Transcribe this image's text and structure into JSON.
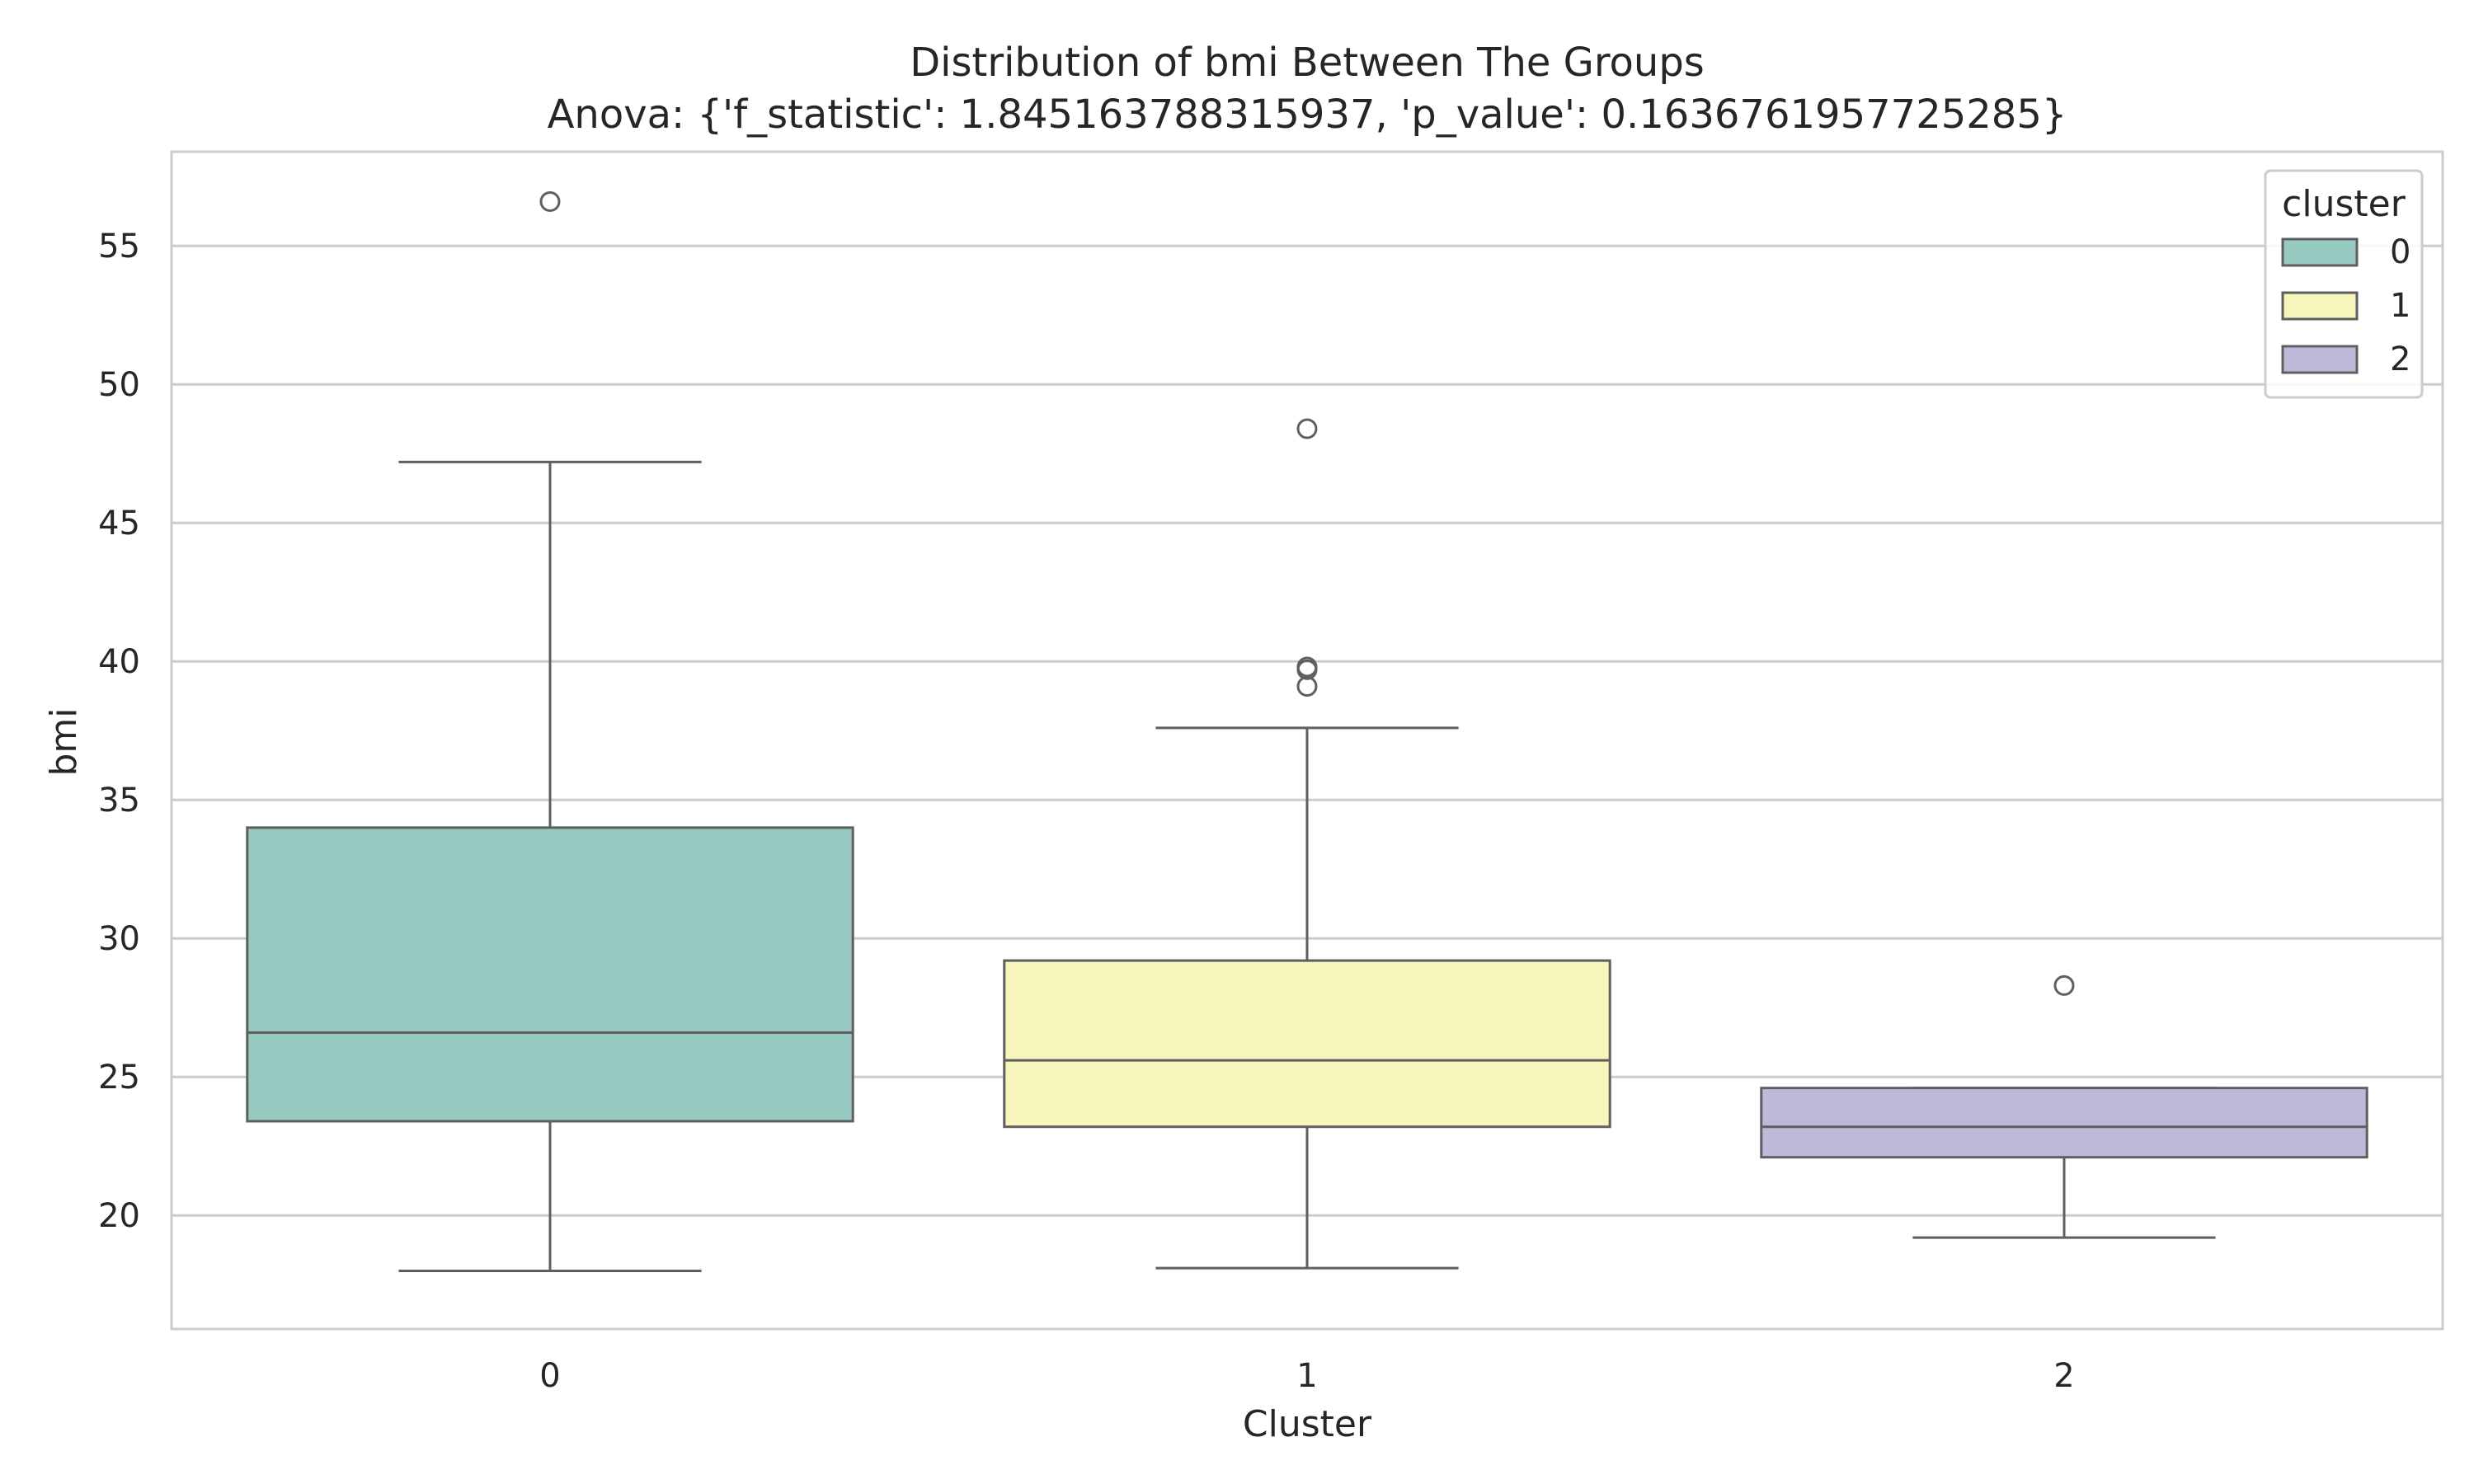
{
  "chart_data": {
    "type": "box",
    "title": "Distribution of bmi Between The Groups",
    "subtitle": "Anova: {'f_statistic': 1.845163788315937, 'p_value': 0.1636761957725285}",
    "xlabel": "Cluster",
    "ylabel": "bmi",
    "categories": [
      "0",
      "1",
      "2"
    ],
    "ylim": [
      15.9,
      58.4
    ],
    "yticks": [
      20,
      25,
      30,
      35,
      40,
      45,
      50,
      55
    ],
    "grid": "horizontal",
    "legend": {
      "title": "cluster",
      "placement": "top-right",
      "entries": [
        "0",
        "1",
        "2"
      ]
    },
    "colors": [
      "#96c9c0",
      "#f6f5bb",
      "#bfb9d9"
    ],
    "series": [
      {
        "category": "0",
        "whisker_low": 18.0,
        "q1": 23.4,
        "median": 26.6,
        "q3": 34.0,
        "whisker_high": 47.2,
        "outliers": [
          56.6
        ]
      },
      {
        "category": "1",
        "whisker_low": 18.1,
        "q1": 23.2,
        "median": 25.6,
        "q3": 29.2,
        "whisker_high": 37.6,
        "outliers": [
          48.4,
          39.8,
          39.7,
          39.1
        ]
      },
      {
        "category": "2",
        "whisker_low": 19.2,
        "q1": 22.1,
        "median": 23.2,
        "q3": 24.6,
        "whisker_high": 24.6,
        "outliers": [
          28.3
        ]
      }
    ]
  }
}
